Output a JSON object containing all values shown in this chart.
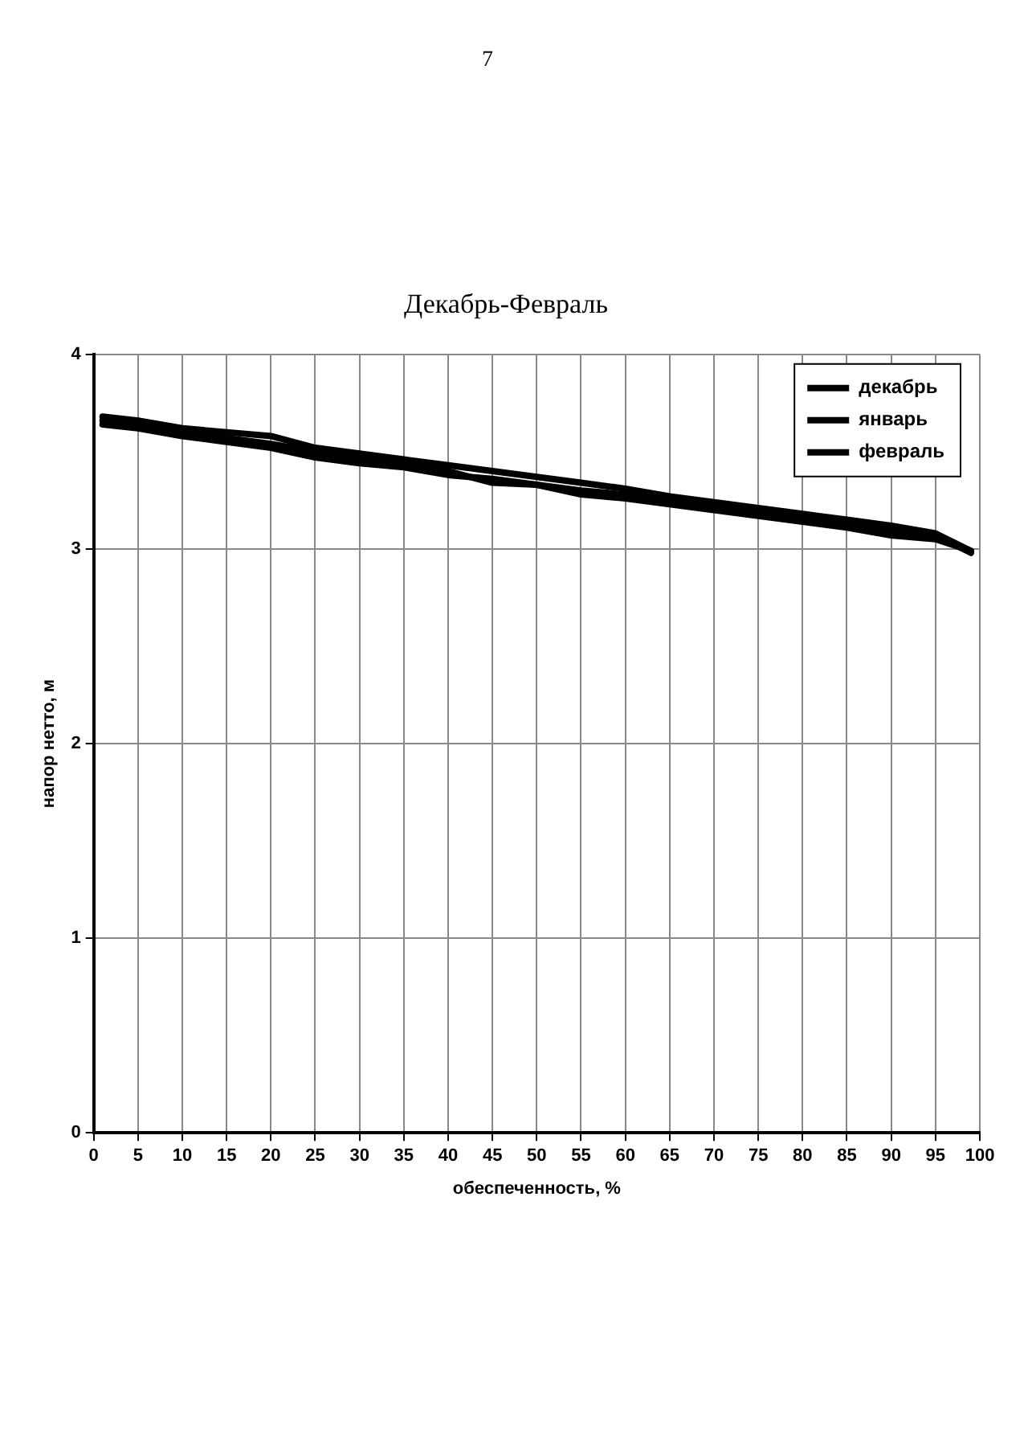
{
  "chart_data": {
    "type": "line",
    "title": "Декабрь-Февраль",
    "xlabel": "обеспеченность, %",
    "ylabel": "напор нетто, м",
    "annotations": [
      "7"
    ],
    "x": [
      1,
      5,
      10,
      15,
      20,
      25,
      30,
      35,
      40,
      45,
      50,
      55,
      60,
      65,
      70,
      75,
      80,
      85,
      90,
      95,
      99
    ],
    "series": [
      {
        "name": "декабрь",
        "color": "#000000",
        "values": [
          3.68,
          3.66,
          3.62,
          3.6,
          3.58,
          3.52,
          3.49,
          3.46,
          3.43,
          3.4,
          3.37,
          3.34,
          3.31,
          3.27,
          3.24,
          3.21,
          3.18,
          3.15,
          3.12,
          3.08,
          2.99
        ]
      },
      {
        "name": "январь",
        "color": "#000000",
        "values": [
          3.66,
          3.63,
          3.6,
          3.57,
          3.54,
          3.5,
          3.47,
          3.44,
          3.4,
          3.34,
          3.33,
          3.3,
          3.28,
          3.25,
          3.22,
          3.18,
          3.16,
          3.13,
          3.1,
          3.07,
          2.98
        ]
      },
      {
        "name": "февраль",
        "color": "#000000",
        "values": [
          3.64,
          3.62,
          3.58,
          3.55,
          3.52,
          3.47,
          3.44,
          3.42,
          3.38,
          3.36,
          3.33,
          3.28,
          3.26,
          3.23,
          3.2,
          3.17,
          3.14,
          3.11,
          3.07,
          3.05,
          2.99
        ]
      }
    ],
    "xlim": [
      0,
      100
    ],
    "xticks": [
      0,
      5,
      10,
      15,
      20,
      25,
      30,
      35,
      40,
      45,
      50,
      55,
      60,
      65,
      70,
      75,
      80,
      85,
      90,
      95,
      100
    ],
    "ylim": [
      0,
      4
    ],
    "yticks": [
      0,
      1,
      2,
      3,
      4
    ],
    "grid": true,
    "legend": "top right",
    "marker": "none",
    "line_style": "solid"
  }
}
